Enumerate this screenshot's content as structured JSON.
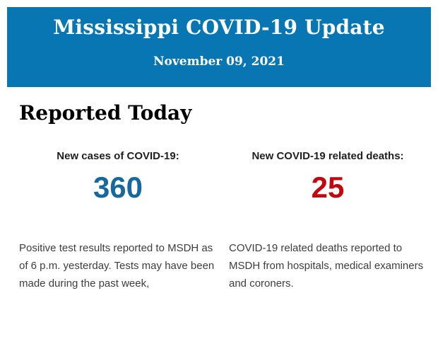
{
  "header": {
    "title": "Mississippi COVID-19 Update",
    "date": "November 09, 2021",
    "background_color": "#0876B2",
    "text_color": "#FFFFFF"
  },
  "section": {
    "heading": "Reported Today"
  },
  "stats": [
    {
      "label": "New cases of COVID-19:",
      "value": "360",
      "value_color": "#16689E",
      "description": "Positive test results reported to MSDH as\nof 6 p.m. yesterday. Tests may have been\nmade during the past week,"
    },
    {
      "label": "New COVID-19 related deaths:",
      "value": "25",
      "value_color": "#C3070E",
      "description": "COVID-19 related deaths reported to\nMSDH from hospitals, medical examiners\nand coroners."
    }
  ]
}
